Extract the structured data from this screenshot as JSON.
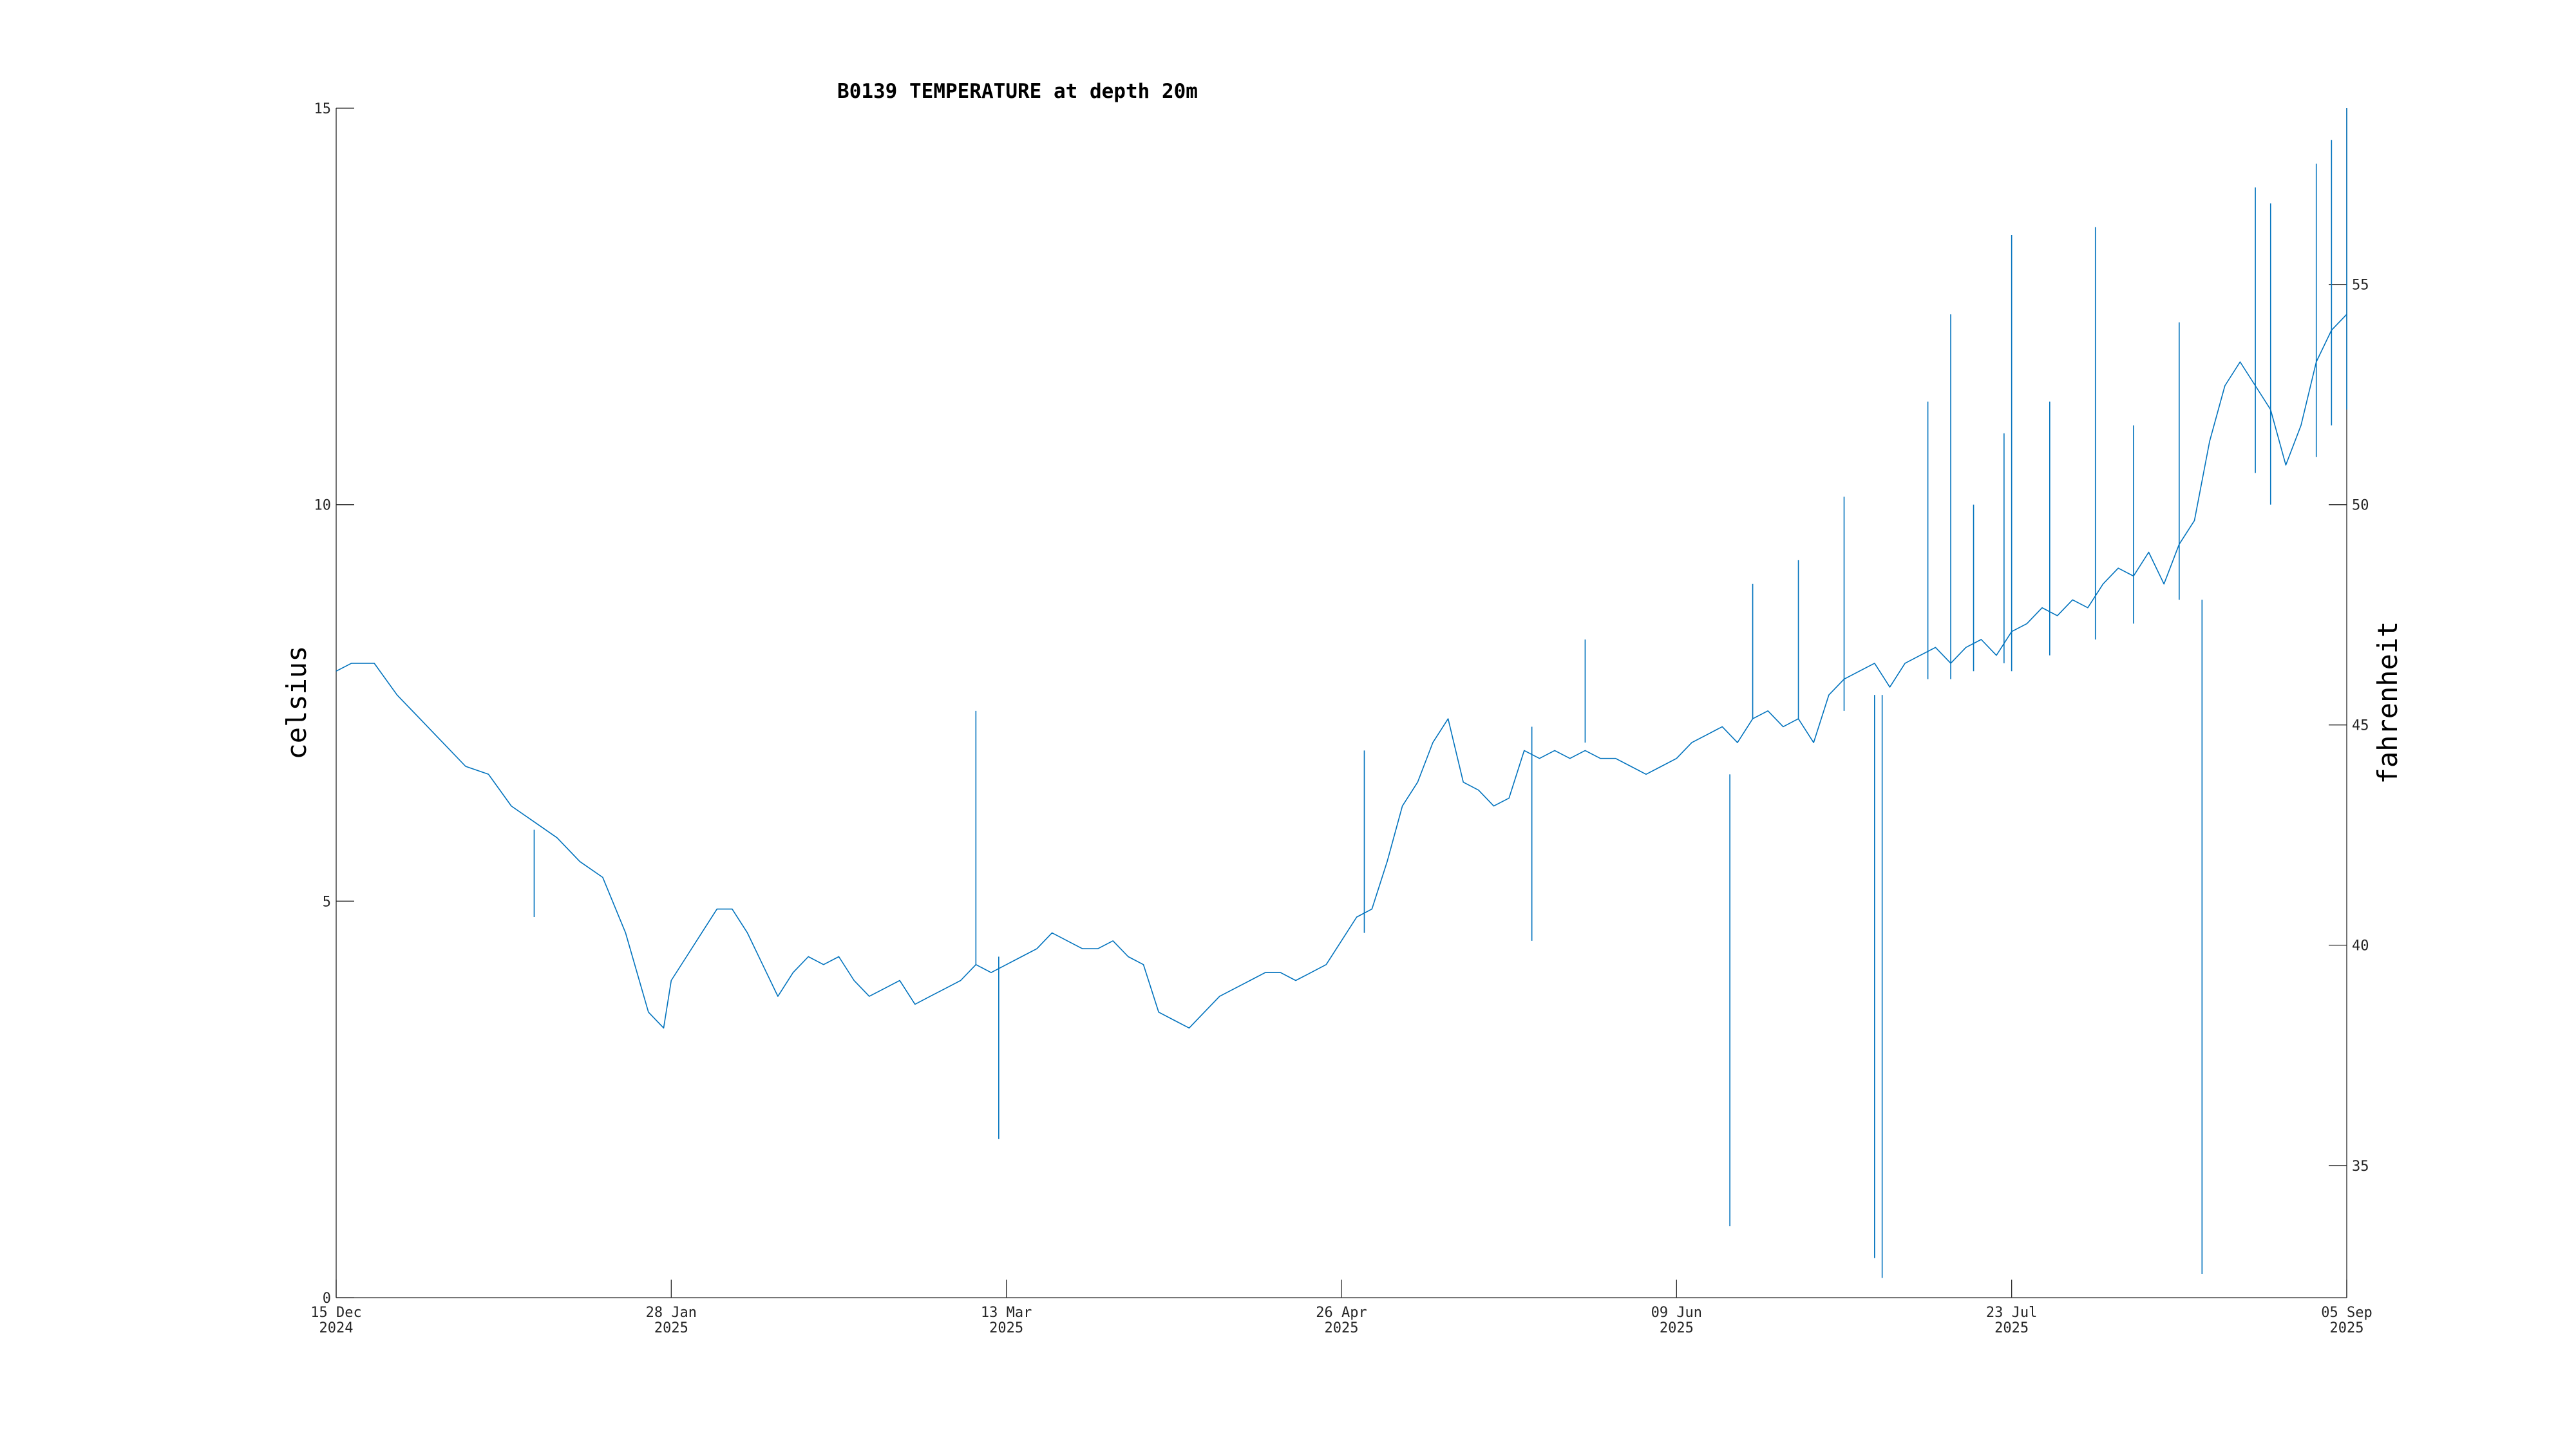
{
  "chart_data": {
    "type": "line",
    "title": "B0139 TEMPERATURE at depth 20m",
    "ylabel": "celsius",
    "ylabel_right": "fahrenheit",
    "xlabel": "",
    "grid": false,
    "x_range": [
      "2024-12-15",
      "2025-09-05"
    ],
    "ylim": [
      0,
      15
    ],
    "ylim_right": [
      32,
      59
    ],
    "x_ticks": [
      {
        "date": "2024-12-15",
        "line1": "15 Dec",
        "line2": "2024"
      },
      {
        "date": "2025-01-28",
        "line1": "28 Jan",
        "line2": "2025"
      },
      {
        "date": "2025-03-13",
        "line1": "13 Mar",
        "line2": "2025"
      },
      {
        "date": "2025-04-26",
        "line1": "26 Apr",
        "line2": "2025"
      },
      {
        "date": "2025-06-09",
        "line1": "09 Jun",
        "line2": "2025"
      },
      {
        "date": "2025-07-23",
        "line1": "23 Jul",
        "line2": "2025"
      },
      {
        "date": "2025-09-05",
        "line1": "05 Sep",
        "line2": "2025"
      }
    ],
    "y_ticks_left": [
      "0",
      "5",
      "10",
      "15"
    ],
    "y_ticks_right": [
      "35",
      "40",
      "45",
      "50",
      "55"
    ],
    "color": "#0072BD",
    "series": [
      {
        "x": [
          "2024-12-15",
          "2024-12-17",
          "2024-12-20",
          "2024-12-23",
          "2024-12-26",
          "2024-12-29",
          "2025-01-01",
          "2025-01-04",
          "2025-01-07",
          "2025-01-10",
          "2025-01-13",
          "2025-01-16",
          "2025-01-19",
          "2025-01-22",
          "2025-01-25",
          "2025-01-27",
          "2025-01-28",
          "2025-01-30",
          "2025-02-01",
          "2025-02-03",
          "2025-02-05",
          "2025-02-07",
          "2025-02-09",
          "2025-02-11",
          "2025-02-13",
          "2025-02-15",
          "2025-02-17",
          "2025-02-19",
          "2025-02-21",
          "2025-02-23",
          "2025-02-25",
          "2025-02-27",
          "2025-03-01",
          "2025-03-03",
          "2025-03-05",
          "2025-03-07",
          "2025-03-09",
          "2025-03-11",
          "2025-03-13",
          "2025-03-15",
          "2025-03-17",
          "2025-03-19",
          "2025-03-21",
          "2025-03-23",
          "2025-03-25",
          "2025-03-27",
          "2025-03-29",
          "2025-03-31",
          "2025-04-02",
          "2025-04-04",
          "2025-04-06",
          "2025-04-08",
          "2025-04-10",
          "2025-04-12",
          "2025-04-14",
          "2025-04-16",
          "2025-04-18",
          "2025-04-20",
          "2025-04-22",
          "2025-04-24",
          "2025-04-26",
          "2025-04-28",
          "2025-04-30",
          "2025-05-02",
          "2025-05-04",
          "2025-05-06",
          "2025-05-08",
          "2025-05-10",
          "2025-05-12",
          "2025-05-14",
          "2025-05-16",
          "2025-05-18",
          "2025-05-20",
          "2025-05-22",
          "2025-05-24",
          "2025-05-26",
          "2025-05-28",
          "2025-05-30",
          "2025-06-01",
          "2025-06-03",
          "2025-06-05",
          "2025-06-07",
          "2025-06-09",
          "2025-06-11",
          "2025-06-13",
          "2025-06-15",
          "2025-06-17",
          "2025-06-19",
          "2025-06-21",
          "2025-06-23",
          "2025-06-25",
          "2025-06-27",
          "2025-06-29",
          "2025-07-01",
          "2025-07-03",
          "2025-07-05",
          "2025-07-07",
          "2025-07-09",
          "2025-07-11",
          "2025-07-13",
          "2025-07-15",
          "2025-07-17",
          "2025-07-19",
          "2025-07-21",
          "2025-07-23",
          "2025-07-25",
          "2025-07-27",
          "2025-07-29",
          "2025-07-31",
          "2025-08-02",
          "2025-08-04",
          "2025-08-06",
          "2025-08-08",
          "2025-08-10",
          "2025-08-12",
          "2025-08-14",
          "2025-08-16",
          "2025-08-18",
          "2025-08-20",
          "2025-08-22",
          "2025-08-24",
          "2025-08-26",
          "2025-08-28",
          "2025-08-30",
          "2025-09-01",
          "2025-09-03",
          "2025-09-05"
        ],
        "y": [
          7.9,
          8.0,
          8.0,
          7.6,
          7.3,
          7.0,
          6.7,
          6.6,
          6.2,
          6.0,
          5.8,
          5.5,
          5.3,
          4.6,
          3.6,
          3.4,
          4.0,
          4.3,
          4.6,
          4.9,
          4.9,
          4.6,
          4.2,
          3.8,
          4.1,
          4.3,
          4.2,
          4.3,
          4.0,
          3.8,
          3.9,
          4.0,
          3.7,
          3.8,
          3.9,
          4.0,
          4.2,
          4.1,
          4.2,
          4.3,
          4.4,
          4.6,
          4.5,
          4.4,
          4.4,
          4.5,
          4.3,
          4.2,
          3.6,
          3.5,
          3.4,
          3.6,
          3.8,
          3.9,
          4.0,
          4.1,
          4.1,
          4.0,
          4.1,
          4.2,
          4.5,
          4.8,
          4.9,
          5.5,
          6.2,
          6.5,
          7.0,
          7.3,
          6.5,
          6.4,
          6.2,
          6.3,
          6.9,
          6.8,
          6.9,
          6.8,
          6.9,
          6.8,
          6.8,
          6.7,
          6.6,
          6.7,
          6.8,
          7.0,
          7.1,
          7.2,
          7.0,
          7.3,
          7.4,
          7.2,
          7.3,
          7.0,
          7.6,
          7.8,
          7.9,
          8.0,
          7.7,
          8.0,
          8.1,
          8.2,
          8.0,
          8.2,
          8.3,
          8.1,
          8.4,
          8.5,
          8.7,
          8.6,
          8.8,
          8.7,
          9.0,
          9.2,
          9.1,
          9.4,
          9.0,
          9.5,
          9.8,
          10.8,
          11.5,
          11.8,
          11.5,
          11.2,
          10.5,
          11.0,
          11.8,
          12.2,
          12.4
        ]
      }
    ],
    "spikes": [
      {
        "x": "2025-01-10",
        "low": 4.8,
        "high": 5.9
      },
      {
        "x": "2025-03-09",
        "low": 4.2,
        "high": 7.4
      },
      {
        "x": "2025-03-12",
        "low": 2.0,
        "high": 4.3
      },
      {
        "x": "2025-04-29",
        "low": 4.6,
        "high": 6.9
      },
      {
        "x": "2025-05-21",
        "low": 4.5,
        "high": 7.2
      },
      {
        "x": "2025-05-28",
        "low": 7.0,
        "high": 8.3
      },
      {
        "x": "2025-06-16",
        "low": 0.9,
        "high": 6.6
      },
      {
        "x": "2025-06-19",
        "low": 7.3,
        "high": 9.0
      },
      {
        "x": "2025-06-25",
        "low": 7.3,
        "high": 9.3
      },
      {
        "x": "2025-07-01",
        "low": 7.4,
        "high": 10.1
      },
      {
        "x": "2025-07-05",
        "low": 0.5,
        "high": 7.6
      },
      {
        "x": "2025-07-06",
        "low": 0.25,
        "high": 7.6
      },
      {
        "x": "2025-07-12",
        "low": 7.8,
        "high": 11.3
      },
      {
        "x": "2025-07-15",
        "low": 7.8,
        "high": 12.4
      },
      {
        "x": "2025-07-18",
        "low": 7.9,
        "high": 10.0
      },
      {
        "x": "2025-07-22",
        "low": 8.0,
        "high": 10.9
      },
      {
        "x": "2025-07-23",
        "low": 7.9,
        "high": 13.4
      },
      {
        "x": "2025-07-28",
        "low": 8.1,
        "high": 11.3
      },
      {
        "x": "2025-08-03",
        "low": 8.3,
        "high": 13.5
      },
      {
        "x": "2025-08-08",
        "low": 8.5,
        "high": 11.0
      },
      {
        "x": "2025-08-14",
        "low": 8.8,
        "high": 12.3
      },
      {
        "x": "2025-08-17",
        "low": 0.3,
        "high": 8.8
      },
      {
        "x": "2025-08-24",
        "low": 10.4,
        "high": 14.0
      },
      {
        "x": "2025-08-26",
        "low": 10.0,
        "high": 13.8
      },
      {
        "x": "2025-09-01",
        "low": 10.6,
        "high": 14.3
      },
      {
        "x": "2025-09-03",
        "low": 11.0,
        "high": 14.6
      },
      {
        "x": "2025-09-05",
        "low": 11.2,
        "high": 15.0
      }
    ]
  }
}
